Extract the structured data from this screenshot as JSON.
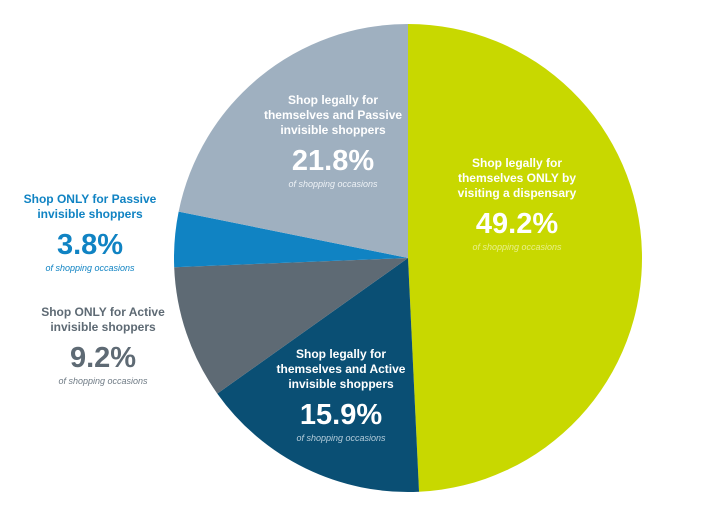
{
  "chart_data": {
    "type": "pie",
    "title": "",
    "value_suffix": "%",
    "note_text": "of shopping occasions",
    "slices": [
      {
        "label": [
          "Shop legally for",
          "themselves ONLY by",
          "visiting a dispensary"
        ],
        "value": 49.2,
        "value_text": "49.2%",
        "color": "#c8d800",
        "label_color": "#ffffff",
        "note_color": "#e9f08a"
      },
      {
        "label": [
          "Shop legally for",
          "themselves and Active",
          "invisible shoppers"
        ],
        "value": 15.9,
        "value_text": "15.9%",
        "color": "#0a4f74",
        "label_color": "#ffffff",
        "note_color": "#b5cddb"
      },
      {
        "label": [
          "Shop ONLY for Active",
          "invisible shoppers"
        ],
        "value": 9.2,
        "value_text": "9.2%",
        "color": "#5e6a74",
        "label_color": "#5e6a74",
        "note_color": "#6f7b85"
      },
      {
        "label": [
          "Shop ONLY for Passive",
          "invisible shoppers"
        ],
        "value": 3.8,
        "value_text": "3.8%",
        "color": "#1083c3",
        "label_color": "#1083c3",
        "note_color": "#1083c3"
      },
      {
        "label": [
          "Shop legally for",
          "themselves and Passive",
          "invisible shoppers"
        ],
        "value": 21.8,
        "value_text": "21.8%",
        "color": "#9fb0c0",
        "label_color": "#ffffff",
        "note_color": "#eef2f6"
      }
    ]
  }
}
